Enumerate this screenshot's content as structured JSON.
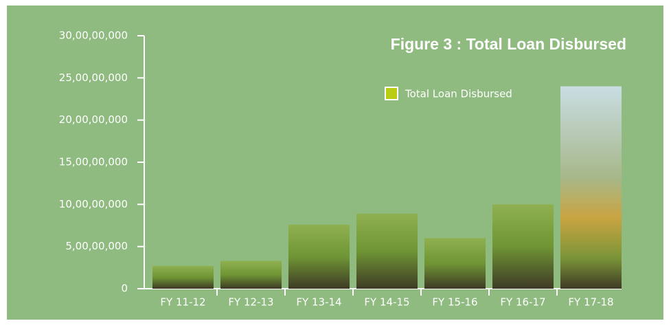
{
  "chart_data": {
    "type": "bar",
    "title": "Figure 3 : Total Loan Disbursed",
    "categories": [
      "FY 11-12",
      "FY 12-13",
      "FY 13-14",
      "FY 14-15",
      "FY 15-16",
      "FY 16-17",
      "FY 17-18"
    ],
    "series": [
      {
        "name": "Total Loan Disbursed",
        "color": "#b8cc12",
        "values": [
          27000000,
          33000000,
          76000000,
          89000000,
          60000000,
          100000000,
          240000000
        ]
      }
    ],
    "ylim": [
      0,
      300000000
    ],
    "yticks": [
      0,
      {
        "value": 50000000,
        "label": "5,00,00,000"
      },
      {
        "value": 100000000,
        "label": "10,00,00,000"
      },
      {
        "value": 150000000,
        "label": "15,00,00,000"
      },
      {
        "value": 200000000,
        "label": "20,00,00,000"
      },
      {
        "value": 250000000,
        "label": "25,00,00,000"
      },
      {
        "value": 300000000,
        "label": "30,00,00,000"
      }
    ],
    "legend": "top-right"
  }
}
